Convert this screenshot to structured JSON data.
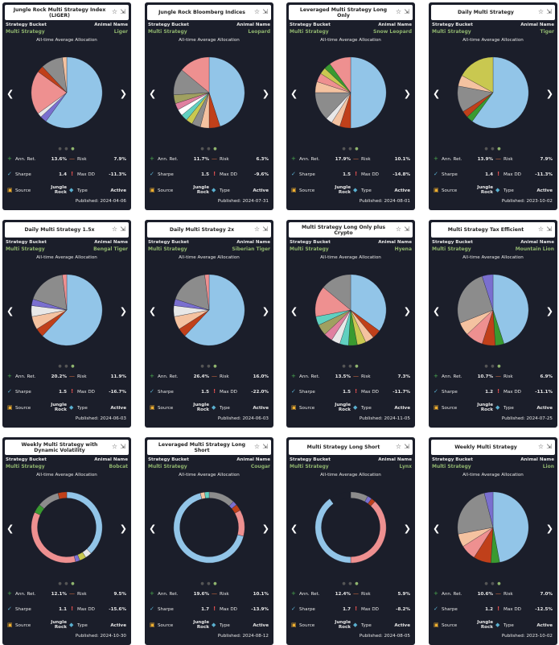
{
  "labels": {
    "strategy_bucket": "Strategy Bucket",
    "animal_name": "Animal Name",
    "allocation": "All-time Average Allocation",
    "ann_ret": "Ann. Ret.",
    "risk": "Risk",
    "sharpe": "Sharpe",
    "max_dd": "Max DD",
    "source": "Source",
    "type": "Type",
    "published_prefix": "Published: "
  },
  "colors": {
    "card_bg": "#1b1e2a",
    "accent_green": "#8fb46e",
    "blue": "#92c5e8",
    "pink": "#ee9090",
    "gray": "#8c8c8c",
    "red": "#c0401a",
    "olive": "#c9c850",
    "green": "#3a9a30"
  },
  "cards": [
    {
      "title": "Jungle Rock Multi Strategy Index (LIGER)",
      "bucket": "Multi Strategy",
      "animal": "Liger",
      "ann_ret": "13.6%",
      "risk": "7.9%",
      "sharpe": "1.4",
      "max_dd": "-11.3%",
      "source": "Jungle Rock",
      "type": "Active",
      "published": "2024-04-06",
      "donut": false,
      "slices": [
        {
          "v": 0.6,
          "c": "#92c5e8"
        },
        {
          "v": 0.03,
          "c": "#7a6fcf"
        },
        {
          "v": 0.02,
          "c": "#e8e8e8"
        },
        {
          "v": 0.2,
          "c": "#ee9090"
        },
        {
          "v": 0.03,
          "c": "#c0401a"
        },
        {
          "v": 0.1,
          "c": "#8c8c8c"
        },
        {
          "v": 0.02,
          "c": "#f4c2a0"
        }
      ]
    },
    {
      "title": "Jungle Rock Bloomberg Indices",
      "bucket": "Multi Strategy",
      "animal": "Leopard",
      "ann_ret": "11.7%",
      "risk": "6.3%",
      "sharpe": "1.5",
      "max_dd": "-9.6%",
      "source": "Jungle Rock",
      "type": "Active",
      "published": "2024-07-31",
      "donut": false,
      "slices": [
        {
          "v": 0.45,
          "c": "#92c5e8"
        },
        {
          "v": 0.05,
          "c": "#c0401a"
        },
        {
          "v": 0.04,
          "c": "#f4c2a0"
        },
        {
          "v": 0.04,
          "c": "#8c8c8c"
        },
        {
          "v": 0.03,
          "c": "#c9c850"
        },
        {
          "v": 0.03,
          "c": "#60d0c0"
        },
        {
          "v": 0.03,
          "c": "#ffffff"
        },
        {
          "v": 0.03,
          "c": "#e080a0"
        },
        {
          "v": 0.04,
          "c": "#a0a060"
        },
        {
          "v": 0.12,
          "c": "#8c8c8c"
        },
        {
          "v": 0.14,
          "c": "#ee9090"
        }
      ]
    },
    {
      "title": "Leveraged Multi Strategy Long Only",
      "bucket": "Multi Strategy",
      "animal": "Snow Leopard",
      "ann_ret": "17.9%",
      "risk": "10.1%",
      "sharpe": "1.5",
      "max_dd": "-14.8%",
      "source": "Jungle Rock",
      "type": "Active",
      "published": "2024-08-01",
      "donut": false,
      "slices": [
        {
          "v": 0.5,
          "c": "#92c5e8"
        },
        {
          "v": 0.05,
          "c": "#c0401a"
        },
        {
          "v": 0.04,
          "c": "#f4c2a0"
        },
        {
          "v": 0.03,
          "c": "#e8e8e8"
        },
        {
          "v": 0.13,
          "c": "#8c8c8c"
        },
        {
          "v": 0.05,
          "c": "#f4c2a0"
        },
        {
          "v": 0.04,
          "c": "#ee9090"
        },
        {
          "v": 0.03,
          "c": "#c9c850"
        },
        {
          "v": 0.03,
          "c": "#3a9a30"
        },
        {
          "v": 0.1,
          "c": "#ee9090"
        }
      ]
    },
    {
      "title": "Daily Multi Strategy",
      "bucket": "Multi Strategy",
      "animal": "Tiger",
      "ann_ret": "13.9%",
      "risk": "7.9%",
      "sharpe": "1.4",
      "max_dd": "-11.3%",
      "source": "Jungle Rock",
      "type": "Active",
      "published": "2023-10-02",
      "donut": false,
      "slices": [
        {
          "v": 0.6,
          "c": "#92c5e8"
        },
        {
          "v": 0.03,
          "c": "#3a9a30"
        },
        {
          "v": 0.03,
          "c": "#c0401a"
        },
        {
          "v": 0.12,
          "c": "#8c8c8c"
        },
        {
          "v": 0.05,
          "c": "#f4c2a0"
        },
        {
          "v": 0.17,
          "c": "#c9c850"
        }
      ]
    },
    {
      "title": "Daily Multi Strategy 1.5x",
      "bucket": "Multi Strategy",
      "animal": "Bengal Tiger",
      "ann_ret": "20.2%",
      "risk": "11.9%",
      "sharpe": "1.5",
      "max_dd": "-16.7%",
      "source": "Jungle Rock",
      "type": "Active",
      "published": "2024-06-03",
      "donut": false,
      "slices": [
        {
          "v": 0.62,
          "c": "#92c5e8"
        },
        {
          "v": 0.04,
          "c": "#c0401a"
        },
        {
          "v": 0.06,
          "c": "#f4c2a0"
        },
        {
          "v": 0.05,
          "c": "#e8e8e8"
        },
        {
          "v": 0.03,
          "c": "#7a6fcf"
        },
        {
          "v": 0.18,
          "c": "#8c8c8c"
        },
        {
          "v": 0.02,
          "c": "#ee9090"
        }
      ]
    },
    {
      "title": "Daily Multi Strategy 2x",
      "bucket": "Multi Strategy",
      "animal": "Siberian Tiger",
      "ann_ret": "26.4%",
      "risk": "16.0%",
      "sharpe": "1.5",
      "max_dd": "-22.0%",
      "source": "Jungle Rock",
      "type": "Active",
      "published": "2024-06-03",
      "donut": false,
      "slices": [
        {
          "v": 0.62,
          "c": "#92c5e8"
        },
        {
          "v": 0.04,
          "c": "#c0401a"
        },
        {
          "v": 0.06,
          "c": "#f4c2a0"
        },
        {
          "v": 0.05,
          "c": "#e8e8e8"
        },
        {
          "v": 0.03,
          "c": "#7a6fcf"
        },
        {
          "v": 0.18,
          "c": "#8c8c8c"
        },
        {
          "v": 0.02,
          "c": "#ee9090"
        }
      ]
    },
    {
      "title": "Multi Strategy Long Only plus Crypto",
      "bucket": "Multi Strategy",
      "animal": "Hyena",
      "ann_ret": "13.5%",
      "risk": "7.3%",
      "sharpe": "1.5",
      "max_dd": "-11.7%",
      "source": "Jungle Rock",
      "type": "Active",
      "published": "2024-11-05",
      "donut": false,
      "slices": [
        {
          "v": 0.35,
          "c": "#92c5e8"
        },
        {
          "v": 0.04,
          "c": "#c0401a"
        },
        {
          "v": 0.04,
          "c": "#f4c2a0"
        },
        {
          "v": 0.04,
          "c": "#c9c850"
        },
        {
          "v": 0.04,
          "c": "#3a9a30"
        },
        {
          "v": 0.04,
          "c": "#60d0c0"
        },
        {
          "v": 0.04,
          "c": "#e8e8e8"
        },
        {
          "v": 0.04,
          "c": "#e080a0"
        },
        {
          "v": 0.05,
          "c": "#a0a060"
        },
        {
          "v": 0.04,
          "c": "#60d0c0"
        },
        {
          "v": 0.14,
          "c": "#ee9090"
        },
        {
          "v": 0.14,
          "c": "#8c8c8c"
        }
      ]
    },
    {
      "title": "Multi Strategy Tax Efficient",
      "bucket": "Multi Strategy",
      "animal": "Mountain Lion",
      "ann_ret": "10.7%",
      "risk": "6.9%",
      "sharpe": "1.2",
      "max_dd": "-11.1%",
      "source": "Jungle Rock",
      "type": "Active",
      "published": "2024-07-25",
      "donut": false,
      "slices": [
        {
          "v": 0.45,
          "c": "#92c5e8"
        },
        {
          "v": 0.04,
          "c": "#3a9a30"
        },
        {
          "v": 0.06,
          "c": "#c0401a"
        },
        {
          "v": 0.08,
          "c": "#ee9090"
        },
        {
          "v": 0.06,
          "c": "#f4c2a0"
        },
        {
          "v": 0.26,
          "c": "#8c8c8c"
        },
        {
          "v": 0.05,
          "c": "#7a6fcf"
        }
      ]
    },
    {
      "title": "Weekly Multi Strategy with Dynamic Volatility",
      "bucket": "Multi Strategy",
      "animal": "Bobcat",
      "ann_ret": "12.1%",
      "risk": "9.5%",
      "sharpe": "1.1",
      "max_dd": "-15.6%",
      "source": "Jungle Rock",
      "type": "Active",
      "published": "2024-10-30",
      "donut": true,
      "slices": [
        {
          "v": 0.38,
          "c": "#92c5e8"
        },
        {
          "v": 0.03,
          "c": "#e8e8e8"
        },
        {
          "v": 0.03,
          "c": "#c9c850"
        },
        {
          "v": 0.02,
          "c": "#7a6fcf"
        },
        {
          "v": 0.36,
          "c": "#ee9090"
        },
        {
          "v": 0.04,
          "c": "#3a9a30"
        },
        {
          "v": 0.1,
          "c": "#8c8c8c"
        },
        {
          "v": 0.04,
          "c": "#c0401a"
        }
      ]
    },
    {
      "title": "Leveraged Multi Strategy Long Short",
      "bucket": "Multi Strategy",
      "animal": "Cougar",
      "ann_ret": "19.6%",
      "risk": "10.1%",
      "sharpe": "1.7",
      "max_dd": "-13.9%",
      "source": "Jungle Rock",
      "type": "Active",
      "published": "2024-08-12",
      "donut": true,
      "slices": [
        {
          "v": 0.12,
          "c": "#8c8c8c"
        },
        {
          "v": 0.02,
          "c": "#7a6fcf"
        },
        {
          "v": 0.03,
          "c": "#c0401a"
        },
        {
          "v": 0.12,
          "c": "#ee9090"
        },
        {
          "v": 0.67,
          "c": "#92c5e8"
        },
        {
          "v": 0.02,
          "c": "#f4c2a0"
        },
        {
          "v": 0.02,
          "c": "#60d0c0"
        }
      ]
    },
    {
      "title": "Multi Strategy Long Short",
      "bucket": "Multi Strategy",
      "animal": "Lynx",
      "ann_ret": "12.4%",
      "risk": "5.9%",
      "sharpe": "1.7",
      "max_dd": "-8.2%",
      "source": "Jungle Rock",
      "type": "Active",
      "published": "2024-08-05",
      "donut": true,
      "slices": [
        {
          "v": 0.08,
          "c": "#8c8c8c"
        },
        {
          "v": 0.02,
          "c": "#7a6fcf"
        },
        {
          "v": 0.02,
          "c": "#c0401a"
        },
        {
          "v": 0.38,
          "c": "#ee9090"
        },
        {
          "v": 0.4,
          "c": "#92c5e8"
        },
        {
          "v": 0.1,
          "c": "#1b1e2a"
        }
      ]
    },
    {
      "title": "Weekly Multi Strategy",
      "bucket": "Multi Strategy",
      "animal": "Lion",
      "ann_ret": "10.6%",
      "risk": "7.0%",
      "sharpe": "1.2",
      "max_dd": "-12.5%",
      "source": "Jungle Rock",
      "type": "Active",
      "published": "2023-10-02",
      "donut": false,
      "slices": [
        {
          "v": 0.47,
          "c": "#92c5e8"
        },
        {
          "v": 0.04,
          "c": "#3a9a30"
        },
        {
          "v": 0.08,
          "c": "#c0401a"
        },
        {
          "v": 0.07,
          "c": "#ee9090"
        },
        {
          "v": 0.06,
          "c": "#f4c2a0"
        },
        {
          "v": 0.24,
          "c": "#8c8c8c"
        },
        {
          "v": 0.04,
          "c": "#7a6fcf"
        }
      ]
    }
  ]
}
